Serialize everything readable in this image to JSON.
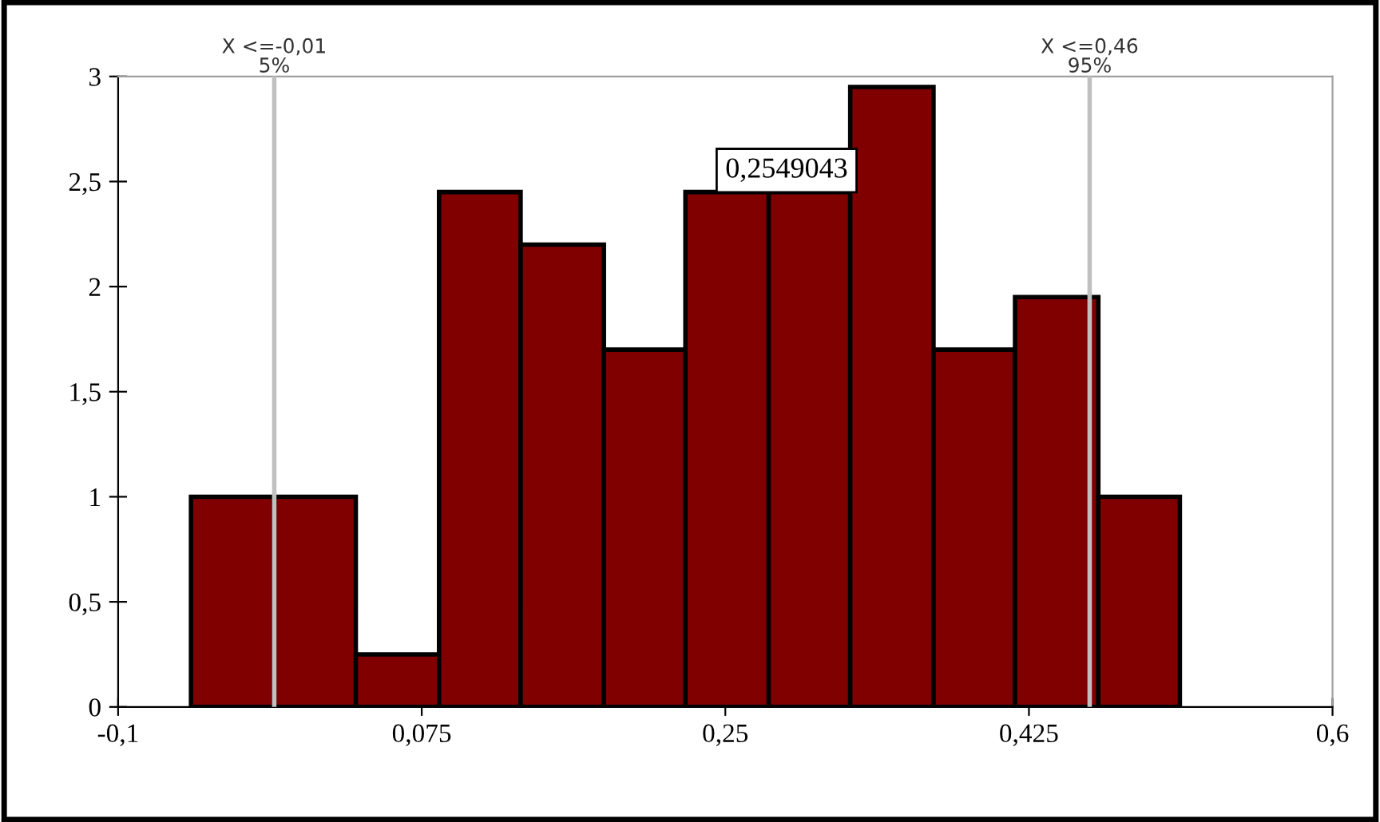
{
  "chart_data": {
    "type": "histogram",
    "bins": [
      -0.058,
      -0.01,
      0.037,
      0.085,
      0.132,
      0.18,
      0.227,
      0.275,
      0.322,
      0.37,
      0.417,
      0.465,
      0.512
    ],
    "values": [
      1,
      1,
      0.25,
      2.45,
      2.2,
      1.7,
      2.45,
      2.45,
      2.95,
      1.7,
      1.95,
      1
    ],
    "color": "#800000",
    "xlim": [
      -0.1,
      0.6
    ],
    "xticks": [
      {
        "value": -0.1,
        "label": "-0,1"
      },
      {
        "value": 0.075,
        "label": "0,075"
      },
      {
        "value": 0.25,
        "label": "0,25"
      },
      {
        "value": 0.425,
        "label": "0,425"
      },
      {
        "value": 0.6,
        "label": "0,6"
      }
    ],
    "ylim": [
      0,
      3
    ],
    "yticks": [
      0,
      {
        "value": 0.5,
        "label": "0,5"
      },
      1,
      {
        "value": 1.5,
        "label": "1,5"
      },
      2,
      {
        "value": 2.5,
        "label": "2,5"
      },
      3
    ],
    "ref_lines": [
      {
        "axis": "x",
        "value": -0.01,
        "label": "X <=-0,01\n5%",
        "color": "#c0c0c0"
      },
      {
        "axis": "x",
        "value": 0.46,
        "label": "X <=0,46\n95%",
        "color": "#c0c0c0"
      }
    ],
    "annotations": [
      "0,2549043"
    ],
    "grid": false
  }
}
